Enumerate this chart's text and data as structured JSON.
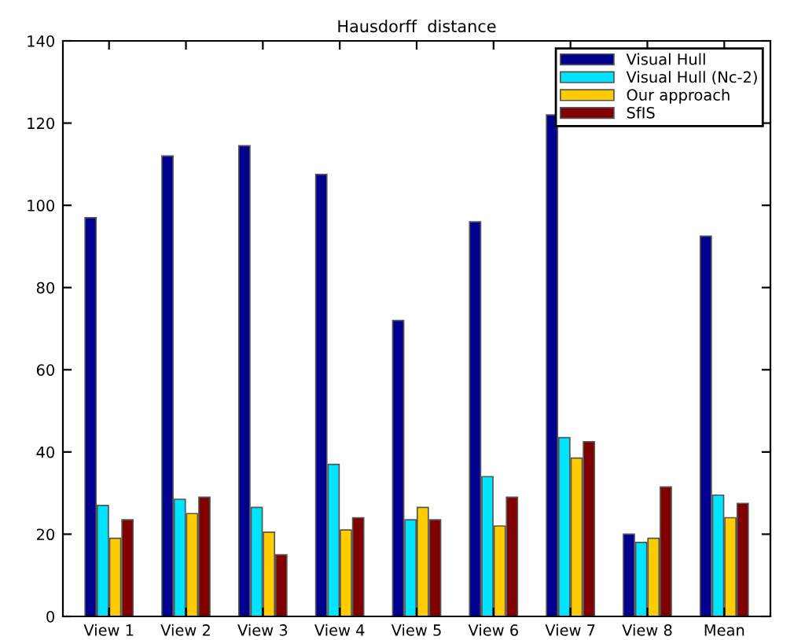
{
  "chart_data": {
    "type": "bar",
    "title": "Hausdorff  distance",
    "categories": [
      "View 1",
      "View 2",
      "View 3",
      "View 4",
      "View 5",
      "View 6",
      "View 7",
      "View 8",
      "Mean"
    ],
    "series": [
      {
        "name": "Visual Hull",
        "color": "#00008f",
        "values": [
          97,
          112,
          114.5,
          107.5,
          72,
          96,
          122,
          20,
          92.5
        ]
      },
      {
        "name": "Visual Hull (Nc-2)",
        "color": "#00e5ff",
        "values": [
          27,
          28.5,
          26.5,
          37,
          23.5,
          34,
          43.5,
          18,
          29.5
        ]
      },
      {
        "name": "Our approach",
        "color": "#ffcc00",
        "values": [
          19,
          25,
          20.5,
          21,
          26.5,
          22,
          38.5,
          19,
          24
        ]
      },
      {
        "name": "SfIS",
        "color": "#800000",
        "values": [
          23.5,
          29,
          15,
          24,
          23.5,
          29,
          42.5,
          31.5,
          27.5
        ]
      }
    ],
    "ylim": [
      0,
      140
    ],
    "yticks": [
      0,
      20,
      40,
      60,
      80,
      100,
      120,
      140
    ],
    "grid": false,
    "legend": "top right"
  }
}
